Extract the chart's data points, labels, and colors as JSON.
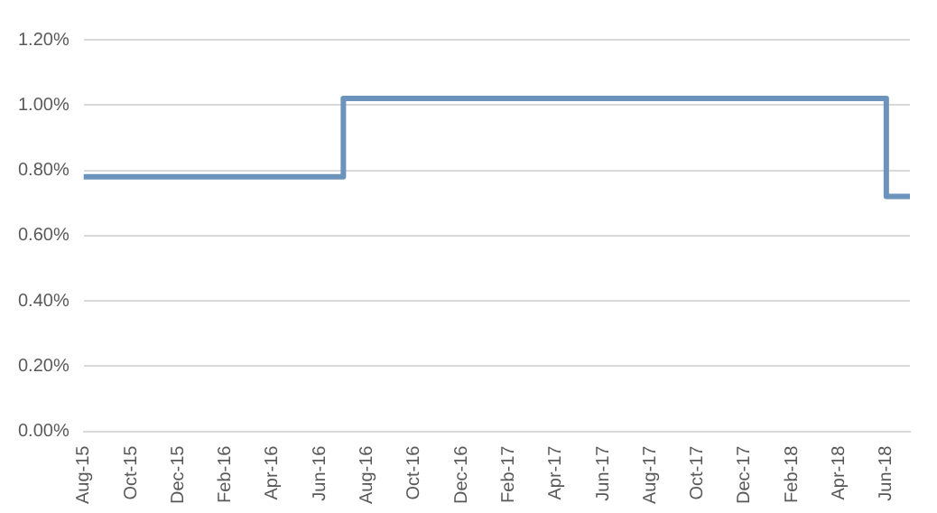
{
  "chart_data": {
    "type": "step",
    "categories": [
      "Aug-15",
      null,
      "Oct-15",
      null,
      "Dec-15",
      null,
      "Feb-16",
      null,
      "Apr-16",
      null,
      "Jun-16",
      null,
      "Aug-16",
      null,
      "Oct-16",
      null,
      "Dec-16",
      null,
      "Feb-17",
      null,
      "Apr-17",
      null,
      "Jun-17",
      null,
      "Aug-17",
      null,
      "Oct-17",
      null,
      "Dec-17",
      null,
      "Feb-18",
      null,
      "Apr-18",
      null,
      "Jun-18",
      null
    ],
    "series": [
      {
        "color": "#6b93bc",
        "values": [
          0.78,
          0.78,
          0.78,
          0.78,
          0.78,
          0.78,
          0.78,
          0.78,
          0.78,
          0.78,
          0.78,
          1.02,
          1.02,
          1.02,
          1.02,
          1.02,
          1.02,
          1.02,
          1.02,
          1.02,
          1.02,
          1.02,
          1.02,
          1.02,
          1.02,
          1.02,
          1.02,
          1.02,
          1.02,
          1.02,
          1.02,
          1.02,
          1.02,
          1.02,
          0.72,
          0.72
        ]
      }
    ],
    "ylim": [
      0,
      1.2
    ],
    "yticks": [
      {
        "value": 0,
        "label": "0.00%"
      },
      {
        "value": 0.2,
        "label": "0.20%"
      },
      {
        "value": 0.4,
        "label": "0.40%"
      },
      {
        "value": 0.6,
        "label": "0.60%"
      },
      {
        "value": 0.8,
        "label": "0.80%"
      },
      {
        "value": 1.0,
        "label": "1.00%"
      },
      {
        "value": 1.2,
        "label": "1.20%"
      }
    ],
    "grid": "y",
    "legend": false,
    "marker": "none",
    "line_style": "solid"
  }
}
